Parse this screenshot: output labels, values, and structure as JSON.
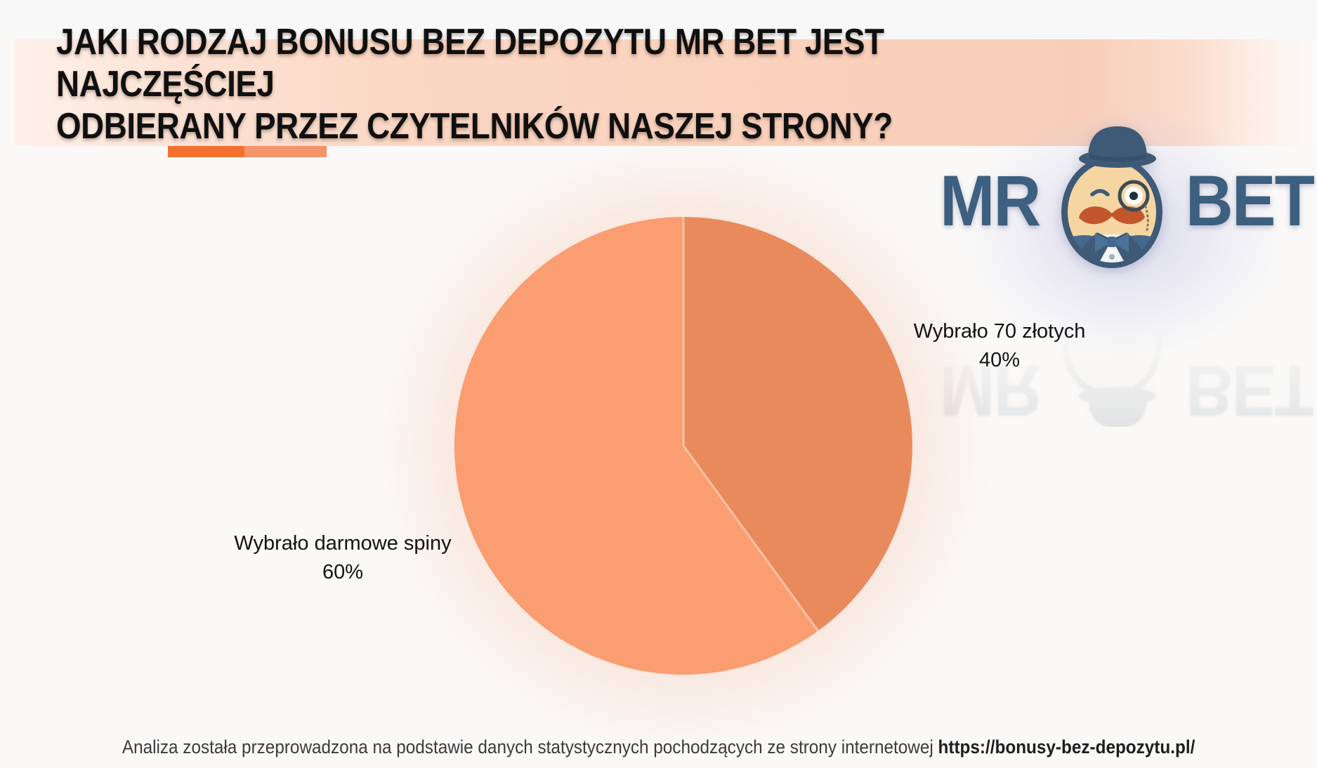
{
  "header": {
    "title_lines": [
      "JAKI RODZAJ BONUSU BEZ DEPOZYTU MR BET JEST NAJCZĘŚCIEJ",
      "ODBIERANY PRZEZ CZYTELNIKÓW NASZEJ STRONY?"
    ],
    "accent_bar_colors": {
      "left": "#f4702f",
      "right": "#f5936b"
    },
    "band_color": "#fad2bd"
  },
  "logo": {
    "word_left": "MR",
    "word_right": "BET",
    "color": "#3d5f80",
    "mascot_icon": "mr-bet-gentleman-with-bowler-hat-monocle-mustache"
  },
  "chart_data": {
    "type": "pie",
    "title": "Jaki rodzaj bonusu bez depozytu Mr Bet jest najczęściej odbierany przez czytelników naszej strony?",
    "start_angle_deg": 0,
    "direction": "clockwise",
    "divider_color": "#fcc3a2",
    "slices": [
      {
        "label": "Wybrało 70 złotych",
        "value": 40,
        "percent_label": "40%",
        "color": "#e98a5d",
        "label_side": "right"
      },
      {
        "label": "Wybrało darmowe spiny",
        "value": 60,
        "percent_label": "60%",
        "color": "#fa9d71",
        "label_side": "left"
      }
    ]
  },
  "footer": {
    "text": "Analiza została przeprowadzona na podstawie danych statystycznych pochodzących ze strony internetowej",
    "link": "https://bonusy-bez-depozytu.pl/"
  }
}
